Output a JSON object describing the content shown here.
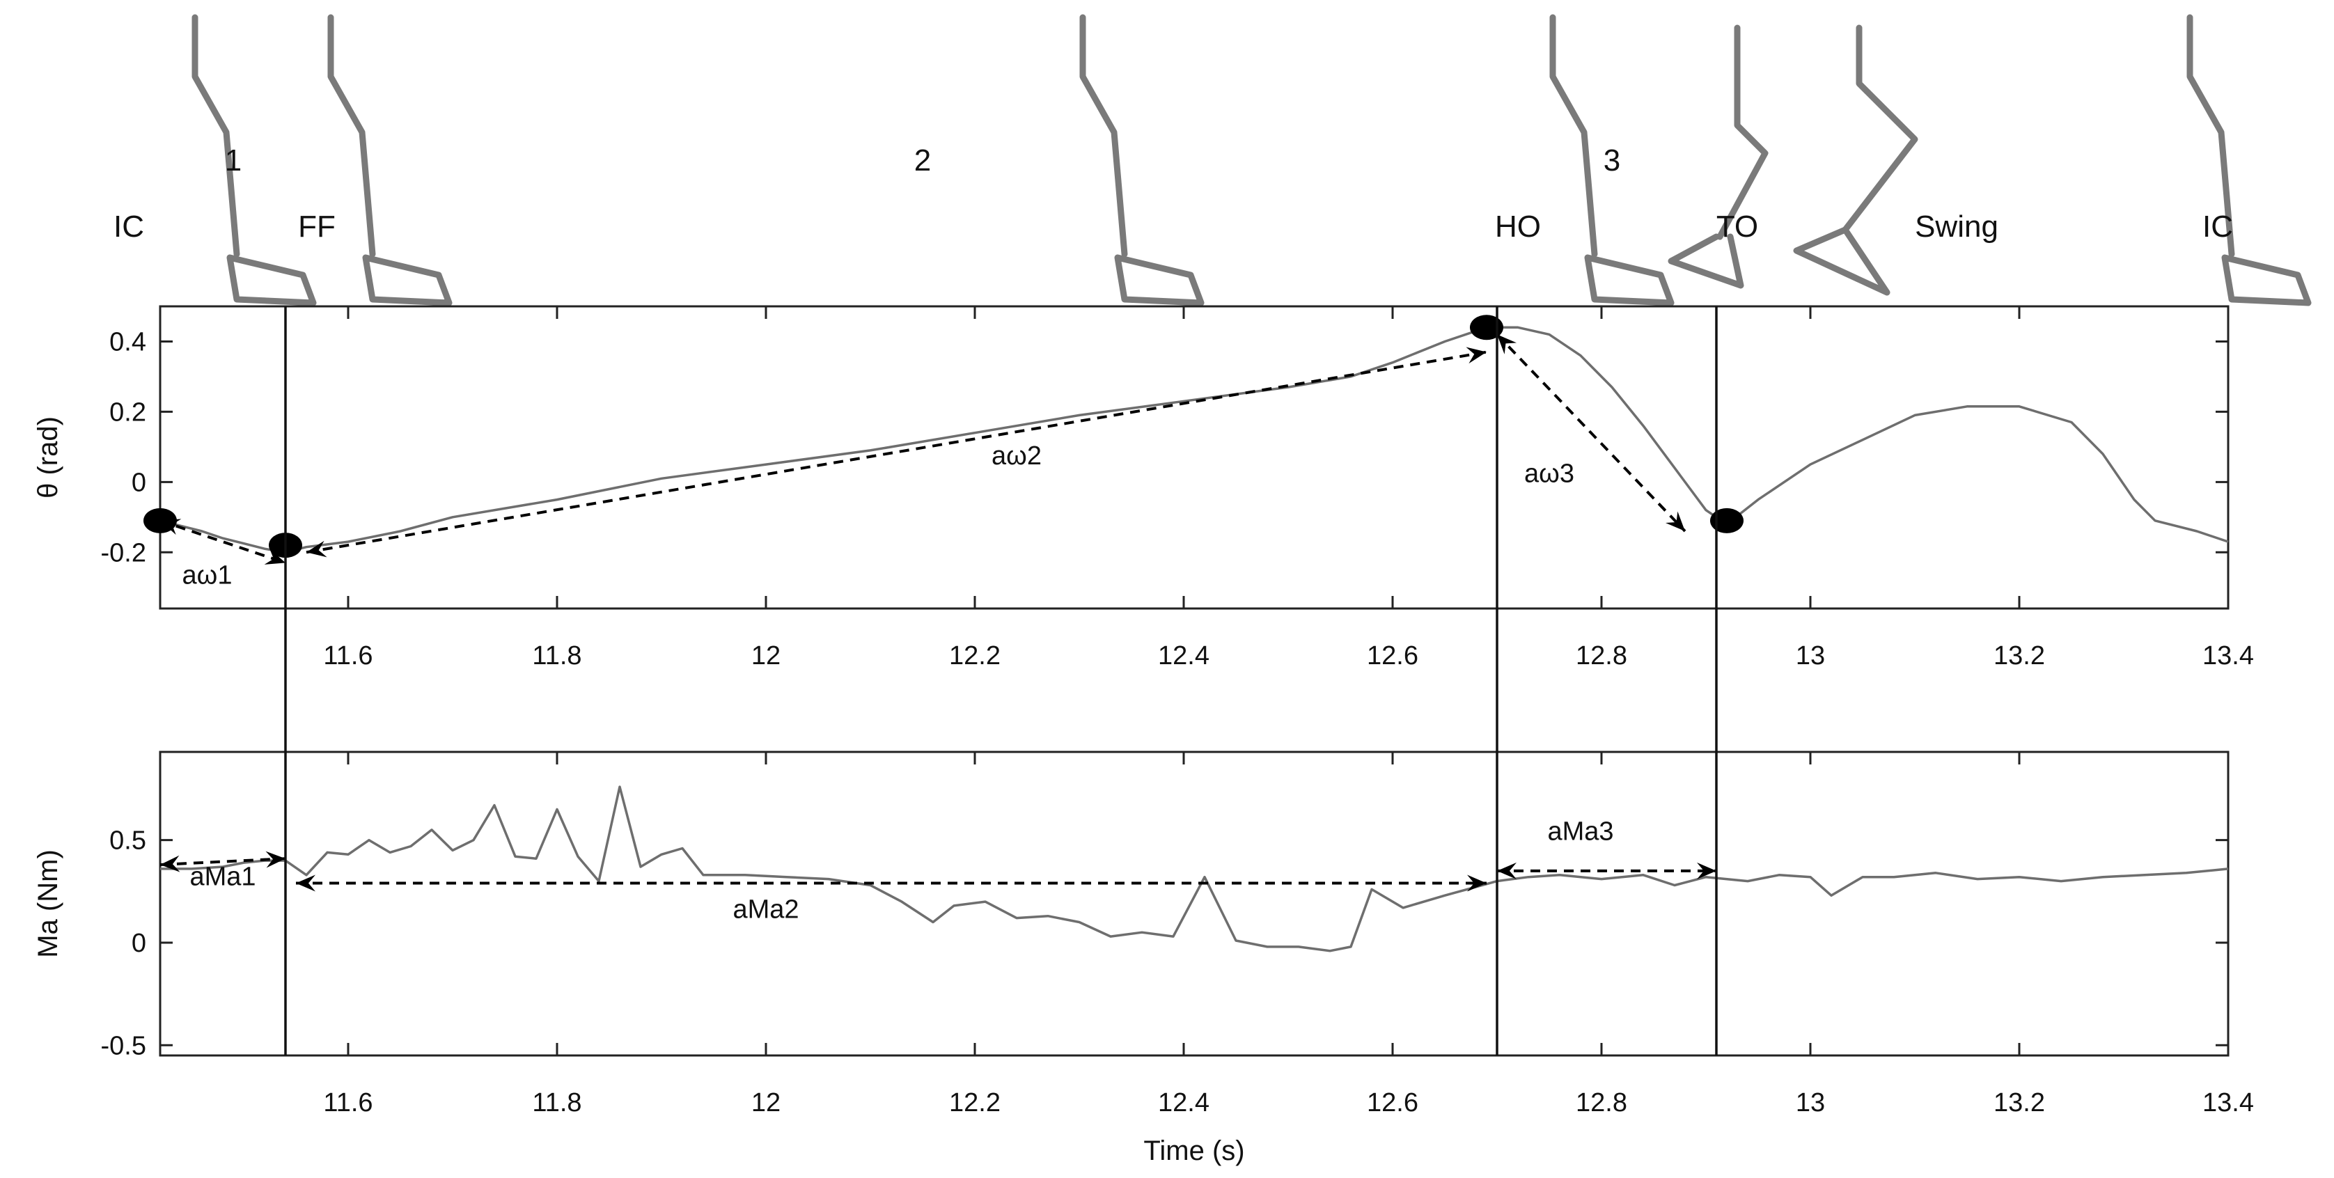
{
  "chart_data": [
    {
      "id": "theta",
      "type": "line",
      "ylabel": "θ (rad)",
      "xlabel": "",
      "xlim": [
        11.42,
        13.4
      ],
      "ylim": [
        -0.36,
        0.5
      ],
      "x_ticks": [
        11.6,
        11.8,
        12,
        12.2,
        12.4,
        12.6,
        12.8,
        13,
        13.2,
        13.4
      ],
      "x_tick_labels": [
        "11.6",
        "11.8",
        "12",
        "12.2",
        "12.4",
        "12.6",
        "12.8",
        "13",
        "13.2",
        "13.4"
      ],
      "y_ticks": [
        0.4,
        0.2,
        0,
        -0.2
      ],
      "y_tick_labels": [
        "0.4",
        "0.2",
        "0",
        "-0.2"
      ],
      "grid": false,
      "series": [
        {
          "color": "#6e6e6e",
          "points": [
            [
              11.42,
              -0.11
            ],
            [
              11.44,
              -0.125
            ],
            [
              11.46,
              -0.14
            ],
            [
              11.48,
              -0.16
            ],
            [
              11.5,
              -0.175
            ],
            [
              11.52,
              -0.19
            ],
            [
              11.54,
              -0.2
            ],
            [
              11.56,
              -0.185
            ],
            [
              11.6,
              -0.17
            ],
            [
              11.65,
              -0.14
            ],
            [
              11.7,
              -0.1
            ],
            [
              11.8,
              -0.05
            ],
            [
              11.9,
              0.01
            ],
            [
              12.0,
              0.05
            ],
            [
              12.1,
              0.09
            ],
            [
              12.2,
              0.14
            ],
            [
              12.3,
              0.19
            ],
            [
              12.4,
              0.23
            ],
            [
              12.5,
              0.27
            ],
            [
              12.56,
              0.3
            ],
            [
              12.6,
              0.34
            ],
            [
              12.65,
              0.4
            ],
            [
              12.69,
              0.44
            ],
            [
              12.72,
              0.44
            ],
            [
              12.75,
              0.42
            ],
            [
              12.78,
              0.36
            ],
            [
              12.81,
              0.27
            ],
            [
              12.84,
              0.16
            ],
            [
              12.87,
              0.04
            ],
            [
              12.9,
              -0.08
            ],
            [
              12.92,
              -0.12
            ],
            [
              12.95,
              -0.05
            ],
            [
              13.0,
              0.05
            ],
            [
              13.05,
              0.12
            ],
            [
              13.1,
              0.19
            ],
            [
              13.15,
              0.215
            ],
            [
              13.2,
              0.215
            ],
            [
              13.25,
              0.17
            ],
            [
              13.28,
              0.08
            ],
            [
              13.31,
              -0.05
            ],
            [
              13.33,
              -0.11
            ],
            [
              13.37,
              -0.14
            ],
            [
              13.4,
              -0.17
            ]
          ]
        }
      ],
      "markers": [
        [
          11.42,
          -0.11
        ],
        [
          11.54,
          -0.18
        ],
        [
          12.69,
          0.44
        ],
        [
          12.92,
          -0.11
        ]
      ],
      "arrows": [
        {
          "label": "aω1",
          "from": [
            11.42,
            -0.11
          ],
          "to": [
            11.54,
            -0.23
          ],
          "label_at": [
            11.465,
            -0.29
          ]
        },
        {
          "label": "aω2",
          "from": [
            11.56,
            -0.2
          ],
          "to": [
            12.69,
            0.37
          ],
          "label_at": [
            12.24,
            0.05
          ]
        },
        {
          "label": "aω3",
          "from": [
            12.7,
            0.42
          ],
          "to": [
            12.88,
            -0.14
          ],
          "label_at": [
            12.75,
            0.0
          ]
        }
      ]
    },
    {
      "id": "moment",
      "type": "line",
      "ylabel": "Ma (Nm)",
      "xlabel": "Time (s)",
      "xlim": [
        11.42,
        13.4
      ],
      "ylim": [
        -0.55,
        0.93
      ],
      "x_ticks": [
        11.6,
        11.8,
        12,
        12.2,
        12.4,
        12.6,
        12.8,
        13,
        13.2,
        13.4
      ],
      "x_tick_labels": [
        "11.6",
        "11.8",
        "12",
        "12.2",
        "12.4",
        "12.6",
        "12.8",
        "13",
        "13.2",
        "13.4"
      ],
      "y_ticks": [
        0.5,
        0,
        -0.5
      ],
      "y_tick_labels": [
        "0.5",
        "0",
        "-0.5"
      ],
      "grid": false,
      "series": [
        {
          "color": "#6e6e6e",
          "points": [
            [
              11.42,
              0.36
            ],
            [
              11.45,
              0.36
            ],
            [
              11.48,
              0.37
            ],
            [
              11.5,
              0.39
            ],
            [
              11.52,
              0.4
            ],
            [
              11.54,
              0.4
            ],
            [
              11.56,
              0.33
            ],
            [
              11.58,
              0.44
            ],
            [
              11.6,
              0.43
            ],
            [
              11.62,
              0.5
            ],
            [
              11.64,
              0.44
            ],
            [
              11.66,
              0.47
            ],
            [
              11.68,
              0.55
            ],
            [
              11.7,
              0.45
            ],
            [
              11.72,
              0.5
            ],
            [
              11.74,
              0.67
            ],
            [
              11.76,
              0.42
            ],
            [
              11.78,
              0.41
            ],
            [
              11.8,
              0.65
            ],
            [
              11.82,
              0.42
            ],
            [
              11.84,
              0.3
            ],
            [
              11.86,
              0.76
            ],
            [
              11.88,
              0.37
            ],
            [
              11.9,
              0.43
            ],
            [
              11.92,
              0.46
            ],
            [
              11.94,
              0.33
            ],
            [
              11.98,
              0.33
            ],
            [
              12.02,
              0.32
            ],
            [
              12.06,
              0.31
            ],
            [
              12.1,
              0.28
            ],
            [
              12.13,
              0.2
            ],
            [
              12.16,
              0.1
            ],
            [
              12.18,
              0.18
            ],
            [
              12.21,
              0.2
            ],
            [
              12.24,
              0.12
            ],
            [
              12.27,
              0.13
            ],
            [
              12.3,
              0.1
            ],
            [
              12.33,
              0.03
            ],
            [
              12.36,
              0.05
            ],
            [
              12.39,
              0.03
            ],
            [
              12.42,
              0.32
            ],
            [
              12.45,
              0.01
            ],
            [
              12.48,
              -0.02
            ],
            [
              12.51,
              -0.02
            ],
            [
              12.54,
              -0.04
            ],
            [
              12.56,
              -0.02
            ],
            [
              12.58,
              0.26
            ],
            [
              12.61,
              0.17
            ],
            [
              12.65,
              0.23
            ],
            [
              12.7,
              0.3
            ],
            [
              12.73,
              0.32
            ],
            [
              12.76,
              0.33
            ],
            [
              12.8,
              0.31
            ],
            [
              12.84,
              0.33
            ],
            [
              12.87,
              0.28
            ],
            [
              12.9,
              0.32
            ],
            [
              12.94,
              0.3
            ],
            [
              12.97,
              0.33
            ],
            [
              13.0,
              0.32
            ],
            [
              13.02,
              0.23
            ],
            [
              13.05,
              0.32
            ],
            [
              13.08,
              0.32
            ],
            [
              13.12,
              0.34
            ],
            [
              13.16,
              0.31
            ],
            [
              13.2,
              0.32
            ],
            [
              13.24,
              0.3
            ],
            [
              13.28,
              0.32
            ],
            [
              13.32,
              0.33
            ],
            [
              13.36,
              0.34
            ],
            [
              13.4,
              0.36
            ]
          ]
        }
      ],
      "arrows": [
        {
          "label": "aMa1",
          "from": [
            11.42,
            0.38
          ],
          "to": [
            11.54,
            0.41
          ],
          "label_at": [
            11.48,
            0.28
          ],
          "bidirectional": true
        },
        {
          "label": "aMa2",
          "from": [
            11.55,
            0.29
          ],
          "to": [
            12.69,
            0.29
          ],
          "label_at": [
            12.0,
            0.12
          ],
          "bidirectional": true
        },
        {
          "label": "aMa3",
          "from": [
            12.7,
            0.35
          ],
          "to": [
            12.91,
            0.35
          ],
          "label_at": [
            12.78,
            0.5
          ],
          "bidirectional": true
        }
      ]
    }
  ],
  "event_lines": [
    11.54,
    12.7,
    12.91
  ],
  "phase_labels": [
    {
      "text": "1",
      "x": 11.49,
      "row": "number"
    },
    {
      "text": "2",
      "x": 12.15,
      "row": "number"
    },
    {
      "text": "3",
      "x": 12.81,
      "row": "number"
    },
    {
      "text": "IC",
      "x": 11.39,
      "row": "event"
    },
    {
      "text": "FF",
      "x": 11.57,
      "row": "event"
    },
    {
      "text": "HO",
      "x": 12.72,
      "row": "event"
    },
    {
      "text": "TO",
      "x": 12.93,
      "row": "event"
    },
    {
      "text": "Swing",
      "x": 13.14,
      "row": "event"
    },
    {
      "text": "IC",
      "x": 13.39,
      "row": "event"
    }
  ],
  "foot_glyphs": [
    {
      "type": "stance",
      "x": 11.5
    },
    {
      "type": "stance",
      "x": 11.63
    },
    {
      "type": "stance",
      "x": 12.35
    },
    {
      "type": "stance",
      "x": 12.8
    },
    {
      "type": "toe",
      "x": 12.94
    },
    {
      "type": "swing",
      "x": 13.06
    },
    {
      "type": "stance",
      "x": 13.41
    }
  ]
}
